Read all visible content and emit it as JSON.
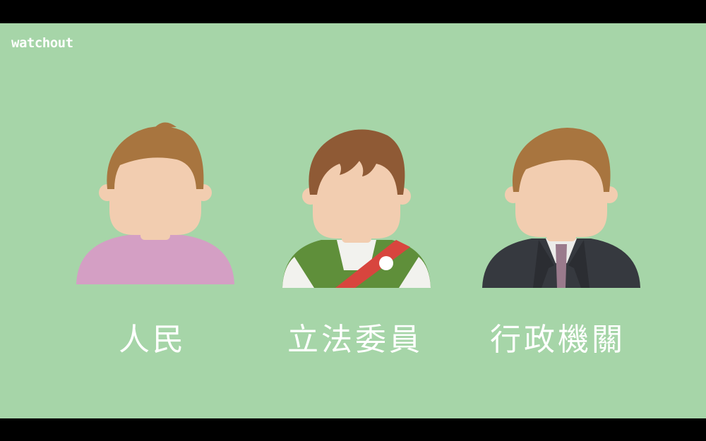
{
  "brand": {
    "logo_text": "watchout"
  },
  "figures": [
    {
      "label": "人民",
      "icon": "citizen-avatar-icon"
    },
    {
      "label": "立法委員",
      "icon": "legislator-avatar-icon"
    },
    {
      "label": "行政機關",
      "icon": "executive-official-avatar-icon"
    }
  ],
  "colors": {
    "background": "#a6d5a8",
    "skin": "#f2cdb0",
    "hair_light": "#a8753f",
    "hair_medium": "#8f5a35",
    "citizen_shirt": "#d49fc4",
    "legislator_vest": "#5f8f3a",
    "sash": "#d8453e",
    "suit": "#36393f",
    "tie": "#9a7a8c"
  }
}
